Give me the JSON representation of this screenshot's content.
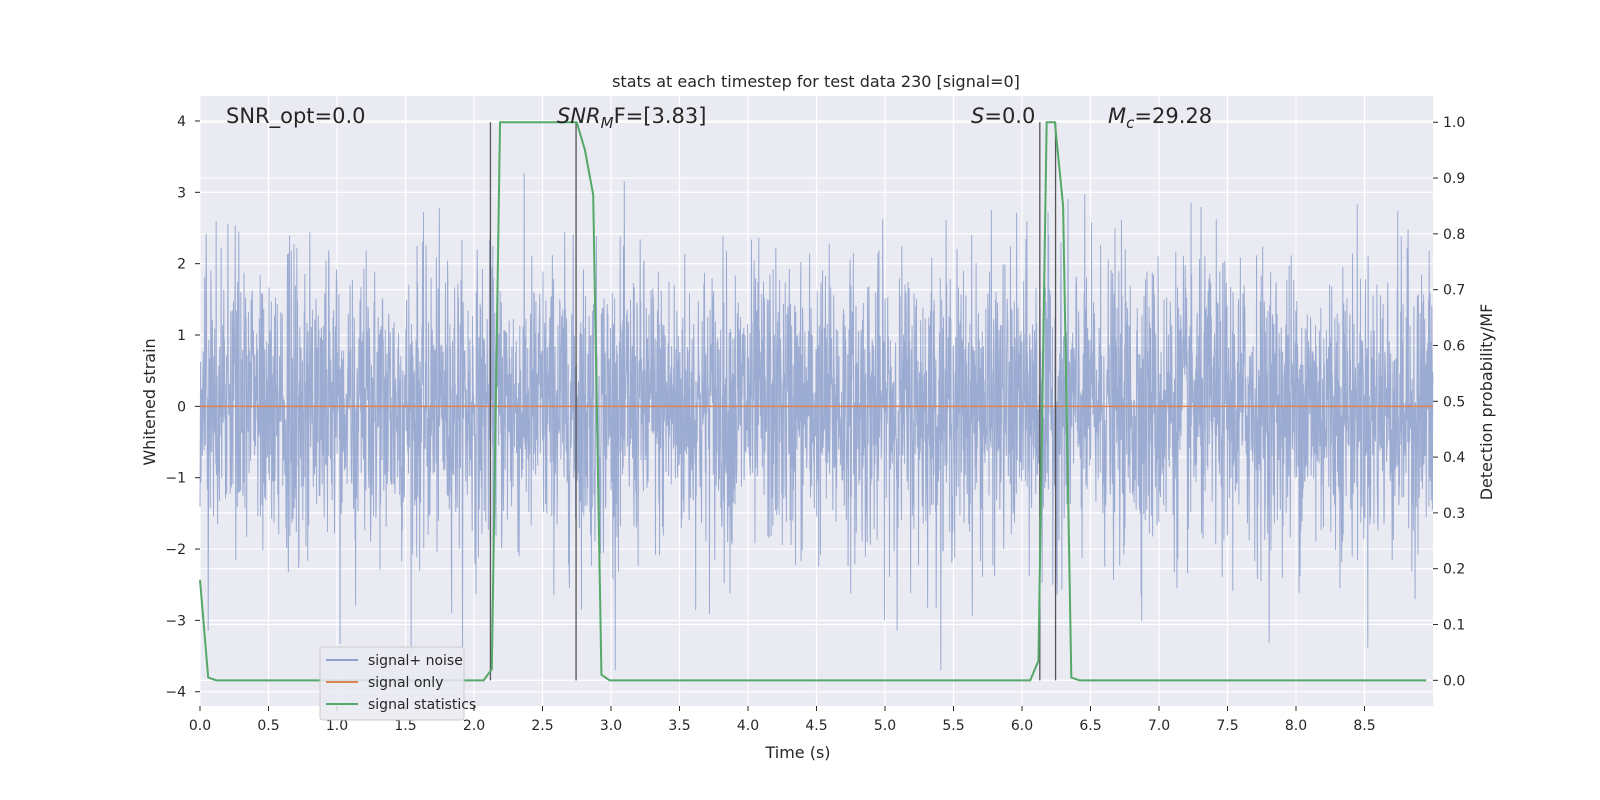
{
  "chart_data": {
    "type": "line",
    "title": "stats at each timestep for test data 230 [signal=0]",
    "xlabel": "Time (s)",
    "ylabel_left": "Whitened strain",
    "ylabel_right": "Detection probability/MF",
    "xlim": [
      0.0,
      9.0
    ],
    "ylim_left": [
      -4.2,
      4.35
    ],
    "ylim_right": [
      -0.046,
      1.047
    ],
    "xticks": [
      "0.0",
      "0.5",
      "1.0",
      "1.5",
      "2.0",
      "2.5",
      "3.0",
      "3.5",
      "4.0",
      "4.5",
      "5.0",
      "5.5",
      "6.0",
      "6.5",
      "7.0",
      "7.5",
      "8.0",
      "8.5"
    ],
    "yticks_left": [
      "4",
      "3",
      "2",
      "1",
      "0",
      "−1",
      "−2",
      "−3",
      "−4"
    ],
    "yticks_right": [
      "1.0",
      "0.9",
      "0.8",
      "0.7",
      "0.6",
      "0.5",
      "0.4",
      "0.3",
      "0.2",
      "0.1",
      "0.0"
    ],
    "grid": true,
    "legend_position": "lower-left",
    "annotations": {
      "snr_opt": "SNR_opt=0.0",
      "snr_mf_main": "SNR",
      "snr_mf_sub": "M",
      "snr_mf_rest": "F=[3.83]",
      "s_main": "S",
      "s_rest": "=0.0",
      "mc_main": "M",
      "mc_sub": "c",
      "mc_rest": "=29.28"
    },
    "series": [
      {
        "name": "signal+ noise",
        "color": "#8da0cb",
        "noise_std": 1.0,
        "x_range": [
          0.0,
          9.0
        ]
      },
      {
        "name": "signal only",
        "color": "#dd8452",
        "values_const": 0.0
      },
      {
        "name": "signal statistics",
        "color": "#55a868",
        "axis": "right",
        "x": [
          0.0,
          0.06,
          0.12,
          0.5,
          1.0,
          1.5,
          2.0,
          2.07,
          2.13,
          2.19,
          2.25,
          2.5,
          2.63,
          2.69,
          2.75,
          2.81,
          2.87,
          2.93,
          2.99,
          3.5,
          4.0,
          5.0,
          5.5,
          6.0,
          6.06,
          6.12,
          6.18,
          6.24,
          6.3,
          6.36,
          6.42,
          7.0,
          8.0,
          8.95
        ],
        "y": [
          0.18,
          0.005,
          0.0,
          0.0,
          0.0,
          0.0,
          0.0,
          0.0,
          0.02,
          1.0,
          1.0,
          1.0,
          1.0,
          1.0,
          1.0,
          0.95,
          0.87,
          0.01,
          0.0,
          0.0,
          0.0,
          0.0,
          0.0,
          0.0,
          0.0,
          0.035,
          1.0,
          1.0,
          0.85,
          0.005,
          0.0,
          0.0,
          0.0,
          0.0
        ]
      }
    ],
    "vlines": [
      2.12,
      2.745,
      6.13,
      6.245
    ],
    "vline_color": "#555555"
  }
}
